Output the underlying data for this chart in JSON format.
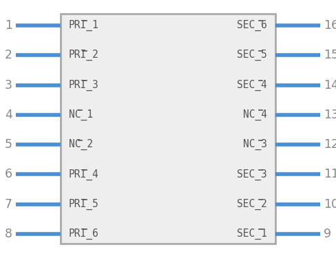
{
  "bg_color": "#ffffff",
  "box_color": "#aaaaaa",
  "box_fill": "#eeeeee",
  "pin_color": "#4a8fd4",
  "text_color": "#555555",
  "num_color": "#888888",
  "left_pins": [
    "PRI_1",
    "PRI_2",
    "PRI_3",
    "NC_1",
    "NC_2",
    "PRI_4",
    "PRI_5",
    "PRI_6"
  ],
  "left_nums": [
    "1",
    "2",
    "3",
    "4",
    "5",
    "6",
    "7",
    "8"
  ],
  "right_pins": [
    "SEC_6",
    "SEC_5",
    "SEC_4",
    "NC_4",
    "NC_3",
    "SEC_3",
    "SEC_2",
    "SEC_1"
  ],
  "right_nums": [
    "16",
    "15",
    "14",
    "13",
    "12",
    "11",
    "10",
    "9"
  ],
  "fig_w": 4.88,
  "fig_h": 3.72,
  "dpi": 100
}
